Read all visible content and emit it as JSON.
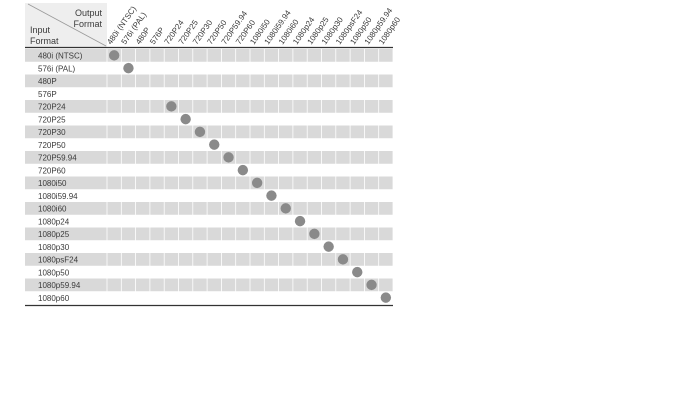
{
  "header": {
    "output_label_line1": "Output",
    "output_label_line2": "Format",
    "input_label_line1": "Input",
    "input_label_line2": "Format"
  },
  "output_formats": [
    "480i (NTSC)",
    "576i (PAL)",
    "480P",
    "576P",
    "720P24",
    "720P25",
    "720P30",
    "720P50",
    "720P59.94",
    "720P60",
    "1080i50",
    "1080i59.94",
    "1080i60",
    "1080p24",
    "1080p25",
    "1080p30",
    "1080psF24",
    "1080p50",
    "1080p59.94",
    "1080p60"
  ],
  "input_formats": [
    "480i (NTSC)",
    "576i (PAL)",
    "480P",
    "576P",
    "720P24",
    "720P25",
    "720P30",
    "720P50",
    "720P59.94",
    "720P60",
    "1080i50",
    "1080i59.94",
    "1080i60",
    "1080p24",
    "1080p25",
    "1080p30",
    "1080psF24",
    "1080p50",
    "1080p59.94",
    "1080p60"
  ],
  "supported": [
    {
      "input": "480i (NTSC)",
      "output": "480i (NTSC)"
    },
    {
      "input": "576i (PAL)",
      "output": "576i (PAL)"
    },
    {
      "input": "720P24",
      "output": "720P24"
    },
    {
      "input": "720P25",
      "output": "720P25"
    },
    {
      "input": "720P30",
      "output": "720P30"
    },
    {
      "input": "720P50",
      "output": "720P50"
    },
    {
      "input": "720P59.94",
      "output": "720P59.94"
    },
    {
      "input": "720P60",
      "output": "720P60"
    },
    {
      "input": "1080i50",
      "output": "1080i50"
    },
    {
      "input": "1080i59.94",
      "output": "1080i59.94"
    },
    {
      "input": "1080i60",
      "output": "1080i60"
    },
    {
      "input": "1080p24",
      "output": "1080p24"
    },
    {
      "input": "1080p25",
      "output": "1080p25"
    },
    {
      "input": "1080p30",
      "output": "1080p30"
    },
    {
      "input": "1080psF24",
      "output": "1080psF24"
    },
    {
      "input": "1080p50",
      "output": "1080p50"
    },
    {
      "input": "1080p59.94",
      "output": "1080p59.94"
    },
    {
      "input": "1080p60",
      "output": "1080p60"
    }
  ],
  "colors": {
    "band": "#d9d9d9",
    "header_bg": "#eeeeee",
    "rule": "#333333",
    "dot": "#8a8a8a",
    "grid": "#ffffff",
    "text": "#3a3a3a"
  }
}
